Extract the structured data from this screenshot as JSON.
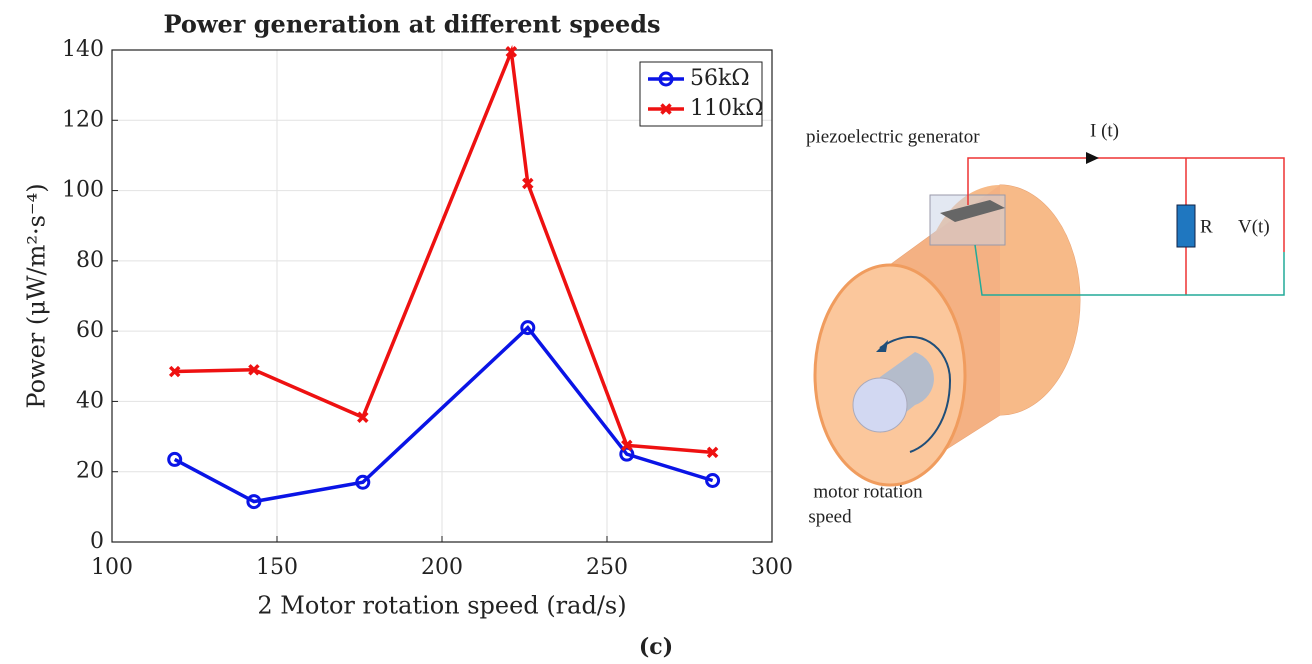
{
  "chart_data": {
    "type": "line",
    "title": "Power generation at different speeds",
    "xlabel": "2  Motor rotation speed (rad/s)",
    "ylabel": "Power (μW/m²·s⁻⁴)",
    "xlim": [
      100,
      300
    ],
    "xticks": [
      100,
      150,
      200,
      250,
      300
    ],
    "ylim": [
      0,
      140
    ],
    "yticks": [
      0,
      20,
      40,
      60,
      80,
      100,
      120,
      140
    ],
    "grid": true,
    "legend": "upper right",
    "series": [
      {
        "name": "56kΩ",
        "color": "#0a14e6",
        "marker": "circle",
        "x": [
          119,
          143,
          176,
          226,
          256,
          282
        ],
        "values": [
          23.5,
          11.5,
          17,
          61,
          25,
          17.5
        ]
      },
      {
        "name": "110kΩ",
        "color": "#ee1111",
        "marker": "x",
        "x": [
          119,
          143,
          176,
          221,
          226,
          256,
          282
        ],
        "values": [
          48.5,
          49,
          35.5,
          139.5,
          102,
          27.5,
          25.5
        ]
      }
    ]
  },
  "caption": "(c)",
  "diagram": {
    "generator": "piezoelectric generator",
    "current": "I (t)",
    "resistor": "R",
    "voltage": "V(t)",
    "motor": [
      "motor rotation",
      "speed"
    ]
  }
}
